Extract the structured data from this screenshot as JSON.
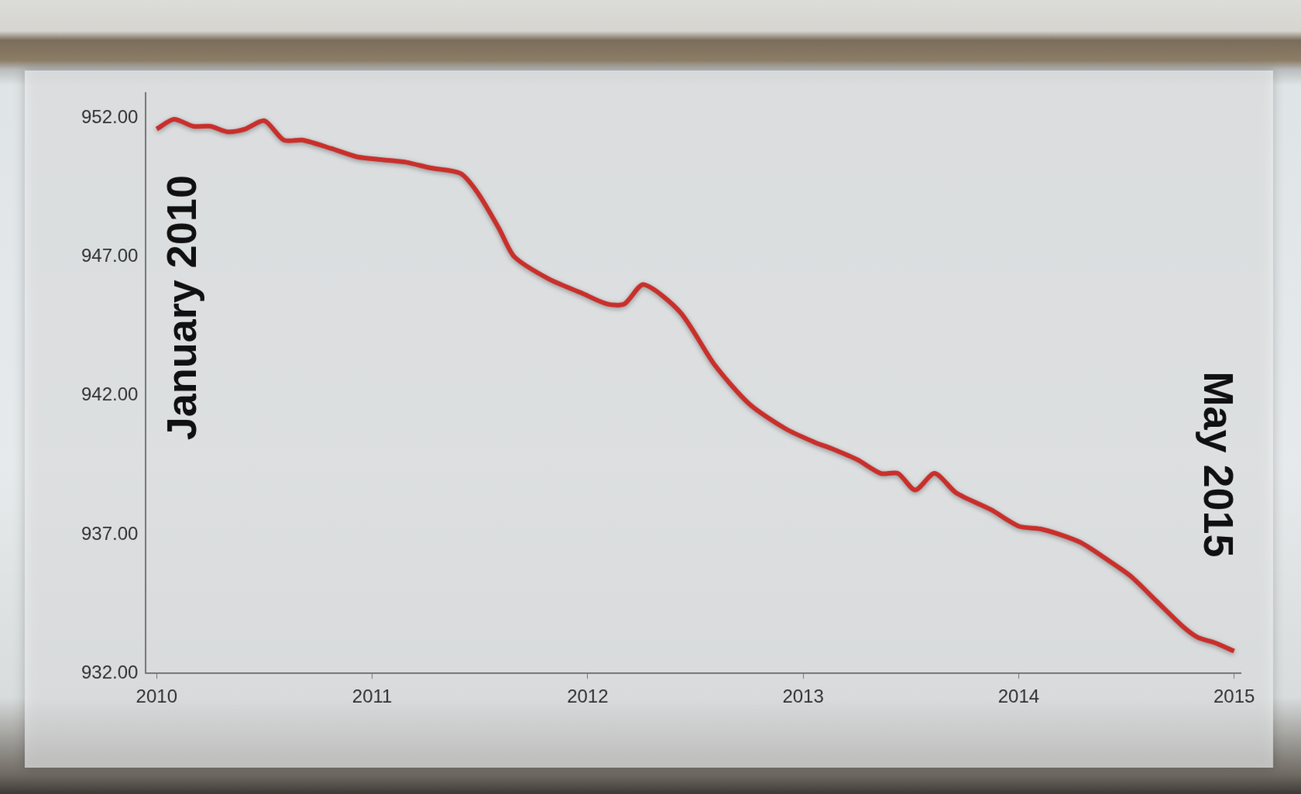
{
  "chart_data": {
    "type": "line",
    "x": [
      2010.0,
      2010.08,
      2010.17,
      2010.25,
      2010.33,
      2010.41,
      2010.5,
      2010.59,
      2010.68,
      2010.81,
      2010.93,
      2011.04,
      2011.16,
      2011.27,
      2011.41,
      2011.49,
      2011.59,
      2011.66,
      2011.82,
      2011.97,
      2012.09,
      2012.17,
      2012.26,
      2012.43,
      2012.59,
      2012.75,
      2012.92,
      2013.06,
      2013.13,
      2013.25,
      2013.36,
      2013.44,
      2013.52,
      2013.61,
      2013.71,
      2013.87,
      2014.0,
      2014.1,
      2014.19,
      2014.29,
      2014.41,
      2014.52,
      2014.64,
      2014.76,
      2014.83,
      2014.91,
      2015.0
    ],
    "values": [
      951.6,
      951.95,
      951.7,
      951.7,
      951.5,
      951.6,
      951.9,
      951.2,
      951.2,
      950.9,
      950.6,
      950.5,
      950.4,
      950.2,
      950.0,
      949.3,
      948.0,
      947.0,
      946.2,
      945.7,
      945.3,
      945.3,
      946.0,
      945.0,
      943.1,
      941.7,
      940.8,
      940.3,
      940.1,
      939.7,
      939.2,
      939.2,
      938.6,
      939.2,
      938.5,
      937.9,
      937.3,
      937.2,
      937.0,
      936.7,
      936.1,
      935.5,
      934.6,
      933.7,
      933.3,
      933.1,
      932.8
    ],
    "color": "#c9302c",
    "xlim": [
      2009.95,
      2015.03
    ],
    "xticks": [
      2010,
      2011,
      2012,
      2013,
      2014,
      2015
    ],
    "ylim": [
      932,
      952.9
    ],
    "yticks": [
      {
        "value": 932,
        "label": "932.00"
      },
      {
        "value": 937,
        "label": "937.00"
      },
      {
        "value": 942,
        "label": "942.00"
      },
      {
        "value": 947,
        "label": "947.00"
      },
      {
        "value": 952,
        "label": "952.00"
      }
    ],
    "grid": false,
    "annotations": [
      "January 2010",
      "May 2015"
    ]
  }
}
